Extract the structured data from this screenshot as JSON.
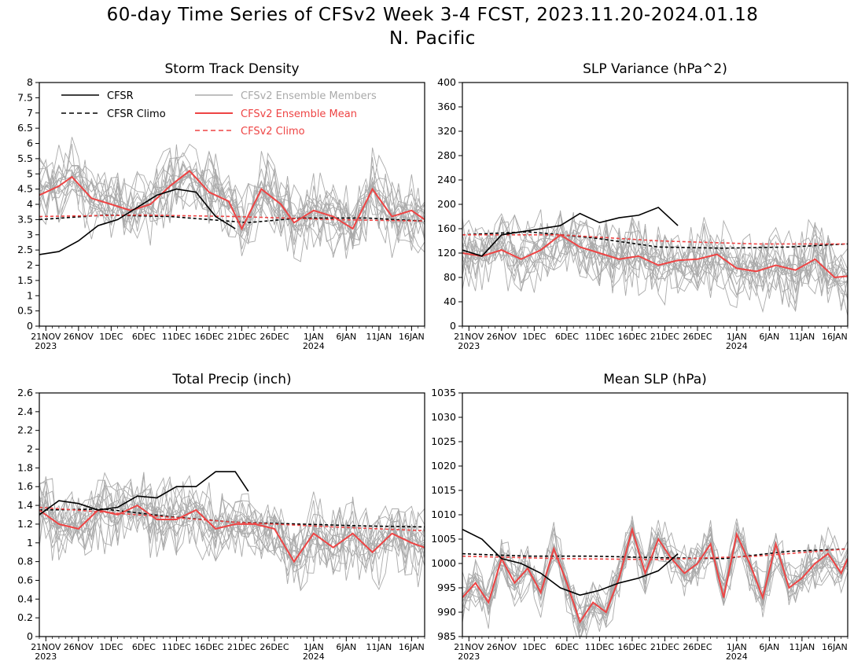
{
  "figure": {
    "title_line1": "60-day Time Series of CFSv2 Week 3-4 FCST, 2023.11.20-2024.01.18",
    "title_line2": "N. Pacific"
  },
  "legend": [
    {
      "label": "CFSR",
      "color": "#000000",
      "dash": "solid"
    },
    {
      "label": "CFSR Climo",
      "color": "#000000",
      "dash": "dashed"
    },
    {
      "label": "CFSv2 Ensemble Members",
      "color": "#aaaaaa",
      "dash": "solid"
    },
    {
      "label": "CFSv2 Ensemble Mean",
      "color": "#ee4444",
      "dash": "solid"
    },
    {
      "label": "CFSv2 Climo",
      "color": "#ee4444",
      "dash": "dashed"
    }
  ],
  "x_axis": {
    "tick_labels": [
      "21NOV",
      "26NOV",
      "1DEC",
      "6DEC",
      "11DEC",
      "16DEC",
      "21DEC",
      "26DEC",
      "1JAN",
      "6JAN",
      "11JAN",
      "16JAN"
    ],
    "year_labels": [
      {
        "label": "2023",
        "at": "21NOV"
      },
      {
        "label": "2024",
        "at": "1JAN"
      }
    ]
  },
  "chart_data": [
    {
      "type": "line",
      "title": "Storm Track Density",
      "ylim": [
        0,
        8
      ],
      "yticks": [
        "0",
        "0.5",
        "1",
        "1.5",
        "2",
        "2.5",
        "3",
        "3.5",
        "4",
        "4.5",
        "5",
        "5.5",
        "6",
        "6.5",
        "7",
        "7.5",
        "8"
      ],
      "legend_shown": true,
      "series": [
        {
          "name": "CFSR",
          "days_from_nov20": [
            0,
            3,
            6,
            9,
            12,
            15,
            18,
            21,
            24,
            27,
            30
          ],
          "values": [
            2.35,
            2.45,
            2.8,
            3.3,
            3.5,
            3.9,
            4.3,
            4.5,
            4.4,
            3.6,
            3.2
          ]
        },
        {
          "name": "CFSR Climo",
          "days_from_nov20": [
            0,
            10,
            20,
            32,
            40,
            50,
            59
          ],
          "values": [
            3.5,
            3.65,
            3.6,
            3.4,
            3.55,
            3.55,
            3.45
          ]
        },
        {
          "name": "CFSv2 Ensemble Mean",
          "days_from_nov20": [
            0,
            3,
            5,
            8,
            11,
            14,
            17,
            20,
            23,
            26,
            29,
            31,
            34,
            37,
            39,
            42,
            45,
            48,
            51,
            54,
            57,
            59
          ],
          "values": [
            4.3,
            4.6,
            4.9,
            4.2,
            4.0,
            3.8,
            4.0,
            4.6,
            5.1,
            4.4,
            4.1,
            3.2,
            4.5,
            4.0,
            3.4,
            3.8,
            3.6,
            3.2,
            4.5,
            3.6,
            3.8,
            3.5
          ]
        },
        {
          "name": "CFSv2 Climo",
          "days_from_nov20": [
            0,
            15,
            30,
            45,
            59
          ],
          "values": [
            3.6,
            3.65,
            3.6,
            3.5,
            3.45
          ]
        }
      ]
    },
    {
      "type": "line",
      "title": "SLP Variance (hPa^2)",
      "ylim": [
        0,
        400
      ],
      "yticks": [
        "0",
        "40",
        "80",
        "120",
        "160",
        "200",
        "240",
        "280",
        "320",
        "360",
        "400"
      ],
      "legend_shown": false,
      "series": [
        {
          "name": "CFSR",
          "days_from_nov20": [
            0,
            3,
            6,
            9,
            12,
            15,
            18,
            21,
            24,
            27,
            30,
            33
          ],
          "values": [
            125,
            115,
            150,
            155,
            160,
            165,
            185,
            170,
            178,
            182,
            195,
            165
          ]
        },
        {
          "name": "CFSR Climo",
          "days_from_nov20": [
            0,
            10,
            20,
            30,
            40,
            50,
            59
          ],
          "values": [
            150,
            155,
            145,
            130,
            128,
            130,
            135
          ]
        },
        {
          "name": "CFSv2 Ensemble Mean",
          "days_from_nov20": [
            0,
            3,
            6,
            9,
            12,
            15,
            18,
            21,
            24,
            27,
            30,
            33,
            36,
            39,
            42,
            45,
            48,
            51,
            54,
            57,
            59
          ],
          "values": [
            120,
            115,
            125,
            110,
            125,
            150,
            130,
            120,
            110,
            115,
            100,
            108,
            110,
            118,
            95,
            90,
            100,
            92,
            110,
            80,
            82
          ]
        },
        {
          "name": "CFSv2 Climo",
          "days_from_nov20": [
            0,
            15,
            30,
            45,
            59
          ],
          "values": [
            150,
            150,
            140,
            135,
            135
          ]
        }
      ]
    },
    {
      "type": "line",
      "title": "Total Precip (inch)",
      "ylim": [
        0,
        2.6
      ],
      "yticks": [
        "0",
        "0.2",
        "0.4",
        "0.6",
        "0.8",
        "1",
        "1.2",
        "1.4",
        "1.6",
        "1.8",
        "2",
        "2.2",
        "2.4",
        "2.6"
      ],
      "legend_shown": false,
      "series": [
        {
          "name": "CFSR",
          "days_from_nov20": [
            0,
            3,
            6,
            9,
            12,
            15,
            18,
            21,
            24,
            27,
            30,
            32
          ],
          "values": [
            1.3,
            1.45,
            1.42,
            1.35,
            1.38,
            1.5,
            1.48,
            1.6,
            1.6,
            1.76,
            1.76,
            1.55
          ]
        },
        {
          "name": "CFSR Climo",
          "days_from_nov20": [
            0,
            10,
            20,
            30,
            40,
            50,
            59
          ],
          "values": [
            1.35,
            1.36,
            1.28,
            1.22,
            1.2,
            1.18,
            1.17
          ]
        },
        {
          "name": "CFSv2 Ensemble Mean",
          "days_from_nov20": [
            0,
            3,
            6,
            9,
            12,
            15,
            18,
            21,
            24,
            27,
            30,
            33,
            36,
            39,
            42,
            45,
            48,
            51,
            54,
            57,
            59
          ],
          "values": [
            1.35,
            1.2,
            1.15,
            1.35,
            1.3,
            1.4,
            1.25,
            1.25,
            1.35,
            1.15,
            1.2,
            1.2,
            1.15,
            0.8,
            1.1,
            0.95,
            1.1,
            0.9,
            1.1,
            1.0,
            0.95
          ]
        },
        {
          "name": "CFSv2 Climo",
          "days_from_nov20": [
            0,
            15,
            30,
            45,
            59
          ],
          "values": [
            1.38,
            1.3,
            1.22,
            1.17,
            1.13
          ]
        }
      ]
    },
    {
      "type": "line",
      "title": "Mean SLP (hPa)",
      "ylim": [
        985,
        1035
      ],
      "yticks": [
        "985",
        "990",
        "995",
        "1000",
        "1005",
        "1010",
        "1015",
        "1020",
        "1025",
        "1030",
        "1035"
      ],
      "legend_shown": false,
      "series": [
        {
          "name": "CFSR",
          "days_from_nov20": [
            0,
            3,
            6,
            9,
            12,
            15,
            18,
            21,
            24,
            27,
            30,
            33
          ],
          "values": [
            1007,
            1005,
            1001,
            1000,
            998,
            995,
            993.5,
            994.5,
            996,
            997,
            998.5,
            1002
          ]
        },
        {
          "name": "CFSR Climo",
          "days_from_nov20": [
            0,
            10,
            20,
            30,
            40,
            50,
            59
          ],
          "values": [
            1002,
            1001.5,
            1001.5,
            1001.2,
            1001,
            1002.5,
            1003
          ]
        },
        {
          "name": "CFSv2 Ensemble Mean",
          "days_from_nov20": [
            0,
            2,
            4,
            6,
            8,
            10,
            12,
            14,
            16,
            18,
            20,
            22,
            24,
            26,
            28,
            30,
            32,
            34,
            36,
            38,
            40,
            42,
            44,
            46,
            48,
            50,
            52,
            54,
            56,
            58,
            59
          ],
          "values": [
            993,
            996,
            992,
            1001,
            996,
            999,
            994,
            1003,
            996,
            988,
            992,
            990,
            997,
            1007,
            998,
            1005,
            1001,
            998,
            1000,
            1004,
            993,
            1006,
            1000,
            993,
            1004,
            995,
            997,
            1000,
            1002,
            998,
            1001
          ]
        },
        {
          "name": "CFSv2 Climo",
          "days_from_nov20": [
            0,
            15,
            30,
            45,
            59
          ],
          "values": [
            1001.5,
            1001,
            1000.8,
            1001.5,
            1003
          ]
        }
      ]
    }
  ]
}
